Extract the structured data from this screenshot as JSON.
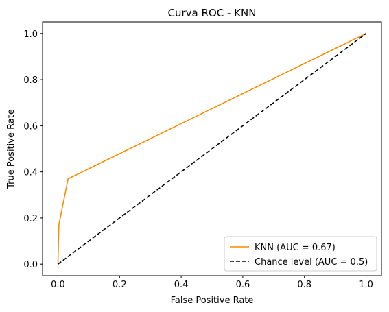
{
  "chart_data": {
    "type": "line",
    "title": "Curva ROC - KNN",
    "xlabel": "False Positive Rate",
    "ylabel": "True Positive Rate",
    "xlim": [
      -0.05,
      1.05
    ],
    "ylim": [
      -0.05,
      1.05
    ],
    "xticks": [
      "0.0",
      "0.2",
      "0.4",
      "0.6",
      "0.8",
      "1.0"
    ],
    "yticks": [
      "0.0",
      "0.2",
      "0.4",
      "0.6",
      "0.8",
      "1.0"
    ],
    "grid": false,
    "legend_position": "lower-right",
    "series": [
      {
        "name": "KNN (AUC = 0.67)",
        "color": "#ff8c00",
        "style": "solid",
        "x": [
          0.0,
          0.003,
          0.033,
          1.0
        ],
        "y": [
          0.0,
          0.17,
          0.37,
          1.0
        ]
      },
      {
        "name": "Chance level (AUC = 0.5)",
        "color": "#000000",
        "style": "dashed",
        "x": [
          0.0,
          1.0
        ],
        "y": [
          0.0,
          1.0
        ]
      }
    ]
  }
}
